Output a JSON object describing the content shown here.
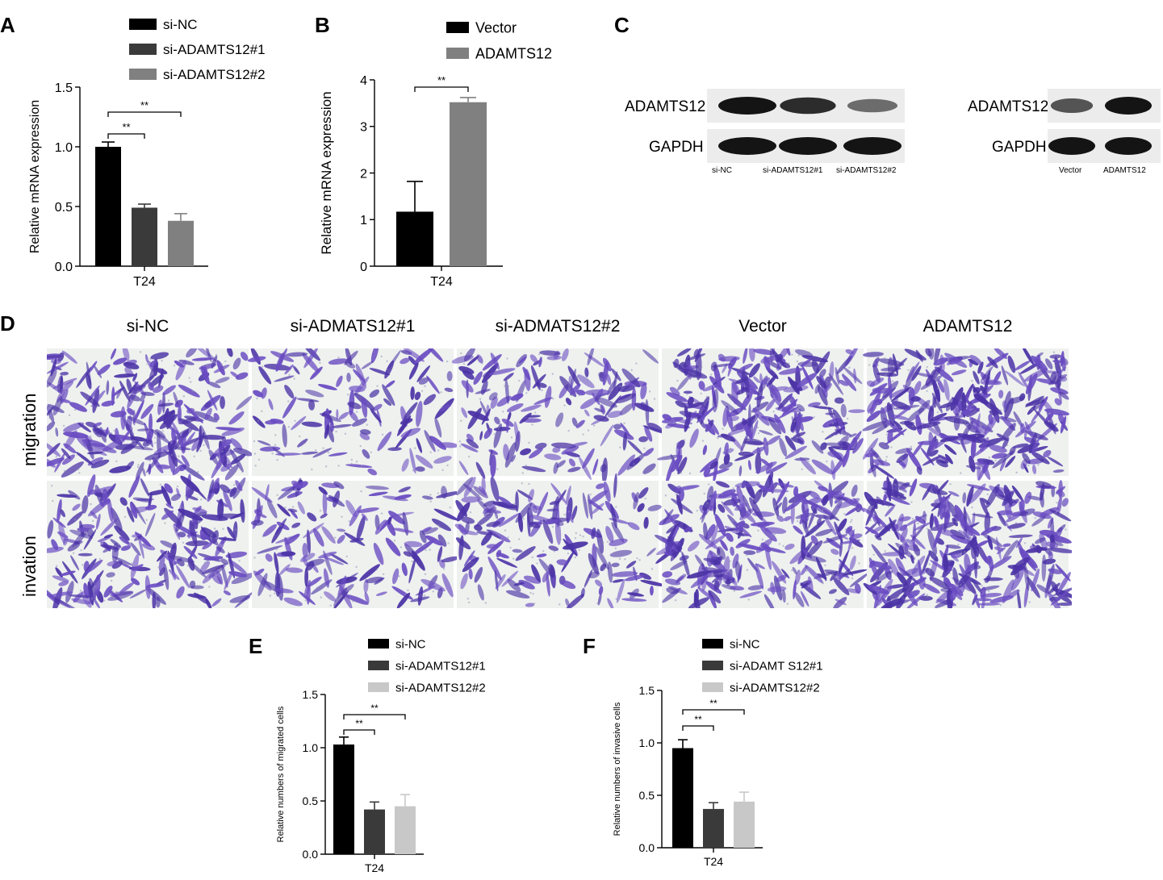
{
  "panels": {
    "A": "A",
    "B": "B",
    "C": "C",
    "D": "D",
    "E": "E",
    "F": "F"
  },
  "chart_data": [
    {
      "id": "A",
      "type": "bar",
      "ylabel": "Relative mRNA expression",
      "xlabel": "T24",
      "ylim": [
        0,
        1.5
      ],
      "yticks": [
        "0.0",
        "0.5",
        "1.0",
        "1.5"
      ],
      "series": [
        {
          "name": "si-NC",
          "values": [
            1.0
          ],
          "error": [
            0.04
          ],
          "color": "#000000"
        },
        {
          "name": "si-ADAMTS12#1",
          "values": [
            0.49
          ],
          "error": [
            0.03
          ],
          "color": "#3a3a3a"
        },
        {
          "name": "si-ADAMTS12#2",
          "values": [
            0.38
          ],
          "error": [
            0.06
          ],
          "color": "#808080"
        }
      ],
      "significance": [
        {
          "label": "**",
          "from": 0,
          "to": 1
        },
        {
          "label": "**",
          "from": 0,
          "to": 2
        }
      ]
    },
    {
      "id": "B",
      "type": "bar",
      "ylabel": "Relative mRNA expression",
      "xlabel": "T24",
      "ylim": [
        0,
        4
      ],
      "yticks": [
        "0",
        "1",
        "2",
        "3",
        "4"
      ],
      "series": [
        {
          "name": "Vector",
          "values": [
            1.17
          ],
          "error": [
            0.65
          ],
          "color": "#000000"
        },
        {
          "name": "ADAMTS12",
          "values": [
            3.52
          ],
          "error": [
            0.1
          ],
          "color": "#808080"
        }
      ],
      "significance": [
        {
          "label": "**",
          "from": 0,
          "to": 1
        }
      ]
    },
    {
      "id": "E",
      "type": "bar",
      "ylabel": "Relative numbers of migrated cells",
      "xlabel": "T24",
      "ylim": [
        0,
        1.5
      ],
      "yticks": [
        "0.0",
        "0.5",
        "1.0",
        "1.5"
      ],
      "series": [
        {
          "name": "si-NC",
          "values": [
            1.03
          ],
          "error": [
            0.07
          ],
          "color": "#000000"
        },
        {
          "name": "si-ADAMTS12#1",
          "values": [
            0.42
          ],
          "error": [
            0.07
          ],
          "color": "#3a3a3a"
        },
        {
          "name": "si-ADAMTS12#2",
          "values": [
            0.45
          ],
          "error": [
            0.11
          ],
          "color": "#c8c8c8"
        }
      ],
      "significance": [
        {
          "label": "**",
          "from": 0,
          "to": 1
        },
        {
          "label": "**",
          "from": 0,
          "to": 2
        }
      ]
    },
    {
      "id": "F",
      "type": "bar",
      "ylabel": "Relative numbers of invasive cells",
      "xlabel": "T24",
      "ylim": [
        0,
        1.5
      ],
      "yticks": [
        "0.0",
        "0.5",
        "1.0",
        "1.5"
      ],
      "series": [
        {
          "name": "si-NC",
          "values": [
            0.95
          ],
          "error": [
            0.08
          ],
          "color": "#000000"
        },
        {
          "name": "si-ADAMT S12#1",
          "values": [
            0.37
          ],
          "error": [
            0.06
          ],
          "color": "#3a3a3a"
        },
        {
          "name": "si-ADAMTS12#2",
          "values": [
            0.44
          ],
          "error": [
            0.09
          ],
          "color": "#c8c8c8"
        }
      ],
      "significance": [
        {
          "label": "**",
          "from": 0,
          "to": 1
        },
        {
          "label": "**",
          "from": 0,
          "to": 2
        }
      ]
    }
  ],
  "blot_left": {
    "rows": [
      "ADAMTS12",
      "GAPDH"
    ],
    "lanes": [
      "si-NC",
      "si-ADAMTS12#1",
      "si-ADAMTS12#2"
    ],
    "intensity": {
      "ADAMTS12": [
        1.0,
        0.85,
        0.45
      ],
      "GAPDH": [
        1.0,
        1.0,
        1.0
      ]
    }
  },
  "blot_right": {
    "rows": [
      "ADAMTS12",
      "GAPDH"
    ],
    "lanes": [
      "Vector",
      "ADAMTS12"
    ],
    "intensity": {
      "ADAMTS12": [
        0.6,
        1.0
      ],
      "GAPDH": [
        1.0,
        1.0
      ]
    }
  },
  "micrographs": {
    "columns": [
      "si-NC",
      "si-ADMATS12#1",
      "si-ADMATS12#2",
      "Vector",
      "ADAMTS12"
    ],
    "rows": [
      "migration",
      "invation"
    ],
    "density": [
      [
        0.75,
        0.3,
        0.45,
        0.8,
        0.95
      ],
      [
        0.7,
        0.4,
        0.45,
        0.85,
        1.0
      ]
    ],
    "stain_color": "#5a3fb0"
  }
}
